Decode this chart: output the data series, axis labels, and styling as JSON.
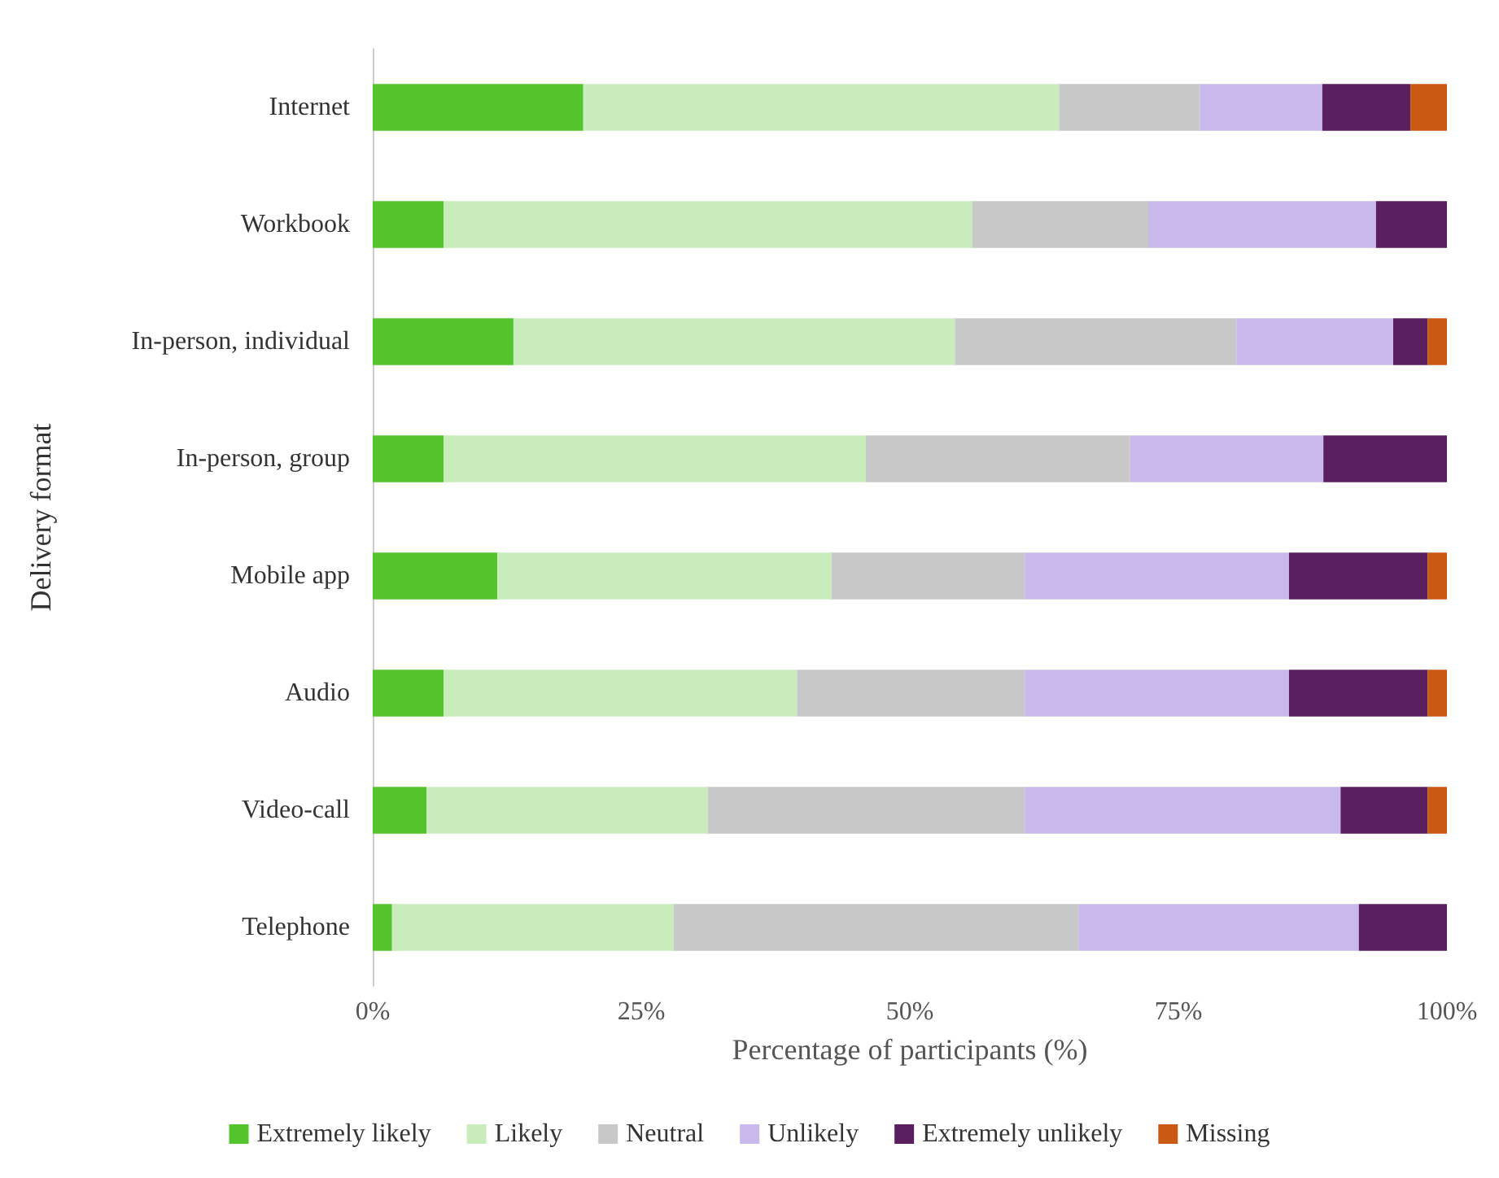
{
  "chart_data": {
    "type": "bar",
    "orientation": "horizontal",
    "stacked": true,
    "xlabel": "Percentage of participants (%)",
    "ylabel": "Delivery format",
    "categories": [
      "Internet",
      "Workbook",
      "In-person, individual",
      "In-person, group",
      "Mobile app",
      "Audio",
      "Video-call",
      "Telephone"
    ],
    "series": [
      {
        "name": "Extremely likely",
        "color": "#54c42c",
        "values": [
          19.6,
          6.6,
          13.1,
          6.6,
          11.6,
          6.6,
          5.0,
          1.8
        ]
      },
      {
        "name": "Likely",
        "color": "#c8ecbc",
        "values": [
          44.3,
          49.2,
          41.1,
          39.3,
          31.1,
          32.9,
          26.2,
          26.2
        ]
      },
      {
        "name": "Neutral",
        "color": "#c8c8c8",
        "values": [
          13.1,
          16.4,
          26.2,
          24.6,
          18.0,
          21.2,
          29.5,
          37.7
        ]
      },
      {
        "name": "Unlikely",
        "color": "#c8b8ec",
        "values": [
          11.4,
          21.2,
          14.6,
          18.0,
          24.6,
          24.6,
          29.4,
          26.1
        ]
      },
      {
        "name": "Extremely unlikely",
        "color": "#5a1f5f",
        "values": [
          8.2,
          6.6,
          3.2,
          11.5,
          12.9,
          12.9,
          8.1,
          8.2
        ]
      },
      {
        "name": "Missing",
        "color": "#c85a14",
        "values": [
          3.4,
          0,
          1.8,
          0,
          1.8,
          1.8,
          1.8,
          0
        ]
      }
    ],
    "xlim": [
      0,
      100
    ],
    "xticks": [
      {
        "value": 0,
        "label": "0%"
      },
      {
        "value": 25,
        "label": "25%"
      },
      {
        "value": 50,
        "label": "50%"
      },
      {
        "value": 75,
        "label": "75%"
      },
      {
        "value": 100,
        "label": "100%"
      }
    ],
    "grid": false,
    "legend": "bottom"
  }
}
